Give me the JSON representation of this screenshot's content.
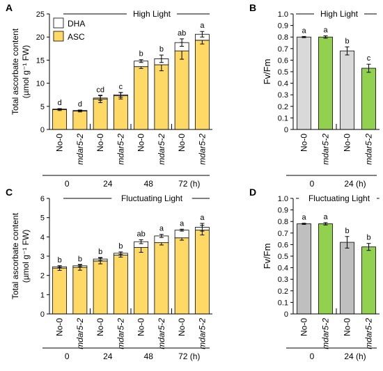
{
  "chart_data": [
    {
      "panel": "A",
      "type": "bar",
      "stacked": true,
      "title": "High Light",
      "ylabel_line1": "Total ascorbate content",
      "ylabel_line2": "(µmol g⁻¹ FW)",
      "ylim": [
        0,
        25
      ],
      "yticks": [
        "0",
        "5",
        "10",
        "15",
        "20",
        "25"
      ],
      "legend": {
        "placement": "top-left",
        "items": [
          {
            "name": "DHA",
            "color": "#ffffff"
          },
          {
            "name": "ASC",
            "color": "#ffd966"
          }
        ]
      },
      "categories": [
        "No-0",
        "mdar5-2",
        "No-0",
        "mdar5-2",
        "No-0",
        "mdar5-2",
        "No-0",
        "mdar5-2"
      ],
      "groups": [
        "0",
        "24",
        "48",
        "72 (h)"
      ],
      "series": [
        {
          "name": "ASC",
          "color": "#ffd966",
          "values": [
            4.3,
            4.0,
            6.6,
            7.3,
            13.6,
            14.0,
            17.0,
            19.3
          ],
          "errors": [
            0.2,
            0.2,
            0.8,
            0.7,
            0.4,
            1.3,
            1.8,
            0.8
          ]
        },
        {
          "name": "DHA",
          "color": "#ffffff",
          "values": [
            0.1,
            0.1,
            0.2,
            0.2,
            1.2,
            1.3,
            1.8,
            1.3
          ],
          "errors": [
            0.1,
            0.1,
            0.5,
            0.5,
            0.3,
            0.8,
            0.8,
            0.6
          ]
        }
      ],
      "letters": [
        "d",
        "d",
        "cd",
        "c",
        "b",
        "b",
        "ab",
        "a"
      ]
    },
    {
      "panel": "B",
      "type": "bar",
      "stacked": false,
      "title": "High Light",
      "ylabel": "Fv/Fm",
      "ylim": [
        0,
        1
      ],
      "yticks": [
        "0",
        "0.1",
        "0.2",
        "0.3",
        "0.4",
        "0.5",
        "0.6",
        "0.7",
        "0.8",
        "0.9",
        "1.0"
      ],
      "categories": [
        "No-0",
        "mdar5-2",
        "No-0",
        "mdar5-2"
      ],
      "groups": [
        "0",
        "24 (h)"
      ],
      "values": [
        0.8,
        0.8,
        0.68,
        0.53
      ],
      "errors": [
        0.005,
        0.01,
        0.035,
        0.035
      ],
      "colors": [
        "#d9d9d9",
        "#92d050",
        "#d9d9d9",
        "#92d050"
      ],
      "letters": [
        "a",
        "a",
        "b",
        "c"
      ]
    },
    {
      "panel": "C",
      "type": "bar",
      "stacked": true,
      "title": "Fluctuating Light",
      "ylabel_line1": "Total ascorbate content",
      "ylabel_line2": "(µmol g⁻¹ FW)",
      "ylim": [
        0,
        6
      ],
      "yticks": [
        "0",
        "1",
        "2",
        "3",
        "4",
        "5",
        "6"
      ],
      "categories": [
        "No-0",
        "mdar5-2",
        "No-0",
        "mdar5-2",
        "No-0",
        "mdar5-2",
        "No-0",
        "mdar5-2"
      ],
      "groups": [
        "0",
        "24",
        "48",
        "72 (h)"
      ],
      "series": [
        {
          "name": "ASC",
          "color": "#ffd966",
          "values": [
            2.38,
            2.42,
            2.75,
            3.05,
            3.45,
            3.7,
            3.95,
            4.35
          ],
          "errors": [
            0.12,
            0.15,
            0.15,
            0.1,
            0.25,
            0.12,
            0.12,
            0.25
          ]
        },
        {
          "name": "DHA",
          "color": "#ffffff",
          "values": [
            0.07,
            0.08,
            0.1,
            0.1,
            0.3,
            0.35,
            0.4,
            0.15
          ],
          "errors": [
            0.05,
            0.05,
            0.08,
            0.07,
            0.1,
            0.08,
            0.05,
            0.2
          ]
        }
      ],
      "letters": [
        "b",
        "b",
        "b",
        "b",
        "ab",
        "a",
        "a",
        "a"
      ]
    },
    {
      "panel": "D",
      "type": "bar",
      "stacked": false,
      "title": "Fluctuating Light",
      "ylabel": "Fv/Fm",
      "ylim": [
        0,
        1
      ],
      "yticks": [
        "0",
        "0.1",
        "0.2",
        "0.3",
        "0.4",
        "0.5",
        "0.6",
        "0.7",
        "0.8",
        "0.9",
        "1.0"
      ],
      "categories": [
        "No-0",
        "mdar5-2",
        "No-0",
        "mdar5-2"
      ],
      "groups": [
        "0",
        "24 (h)"
      ],
      "values": [
        0.78,
        0.78,
        0.62,
        0.58
      ],
      "errors": [
        0.005,
        0.01,
        0.05,
        0.03
      ],
      "colors": [
        "#bfbfbf",
        "#92d050",
        "#bfbfbf",
        "#92d050"
      ],
      "letters": [
        "a",
        "a",
        "b",
        "b"
      ]
    }
  ]
}
